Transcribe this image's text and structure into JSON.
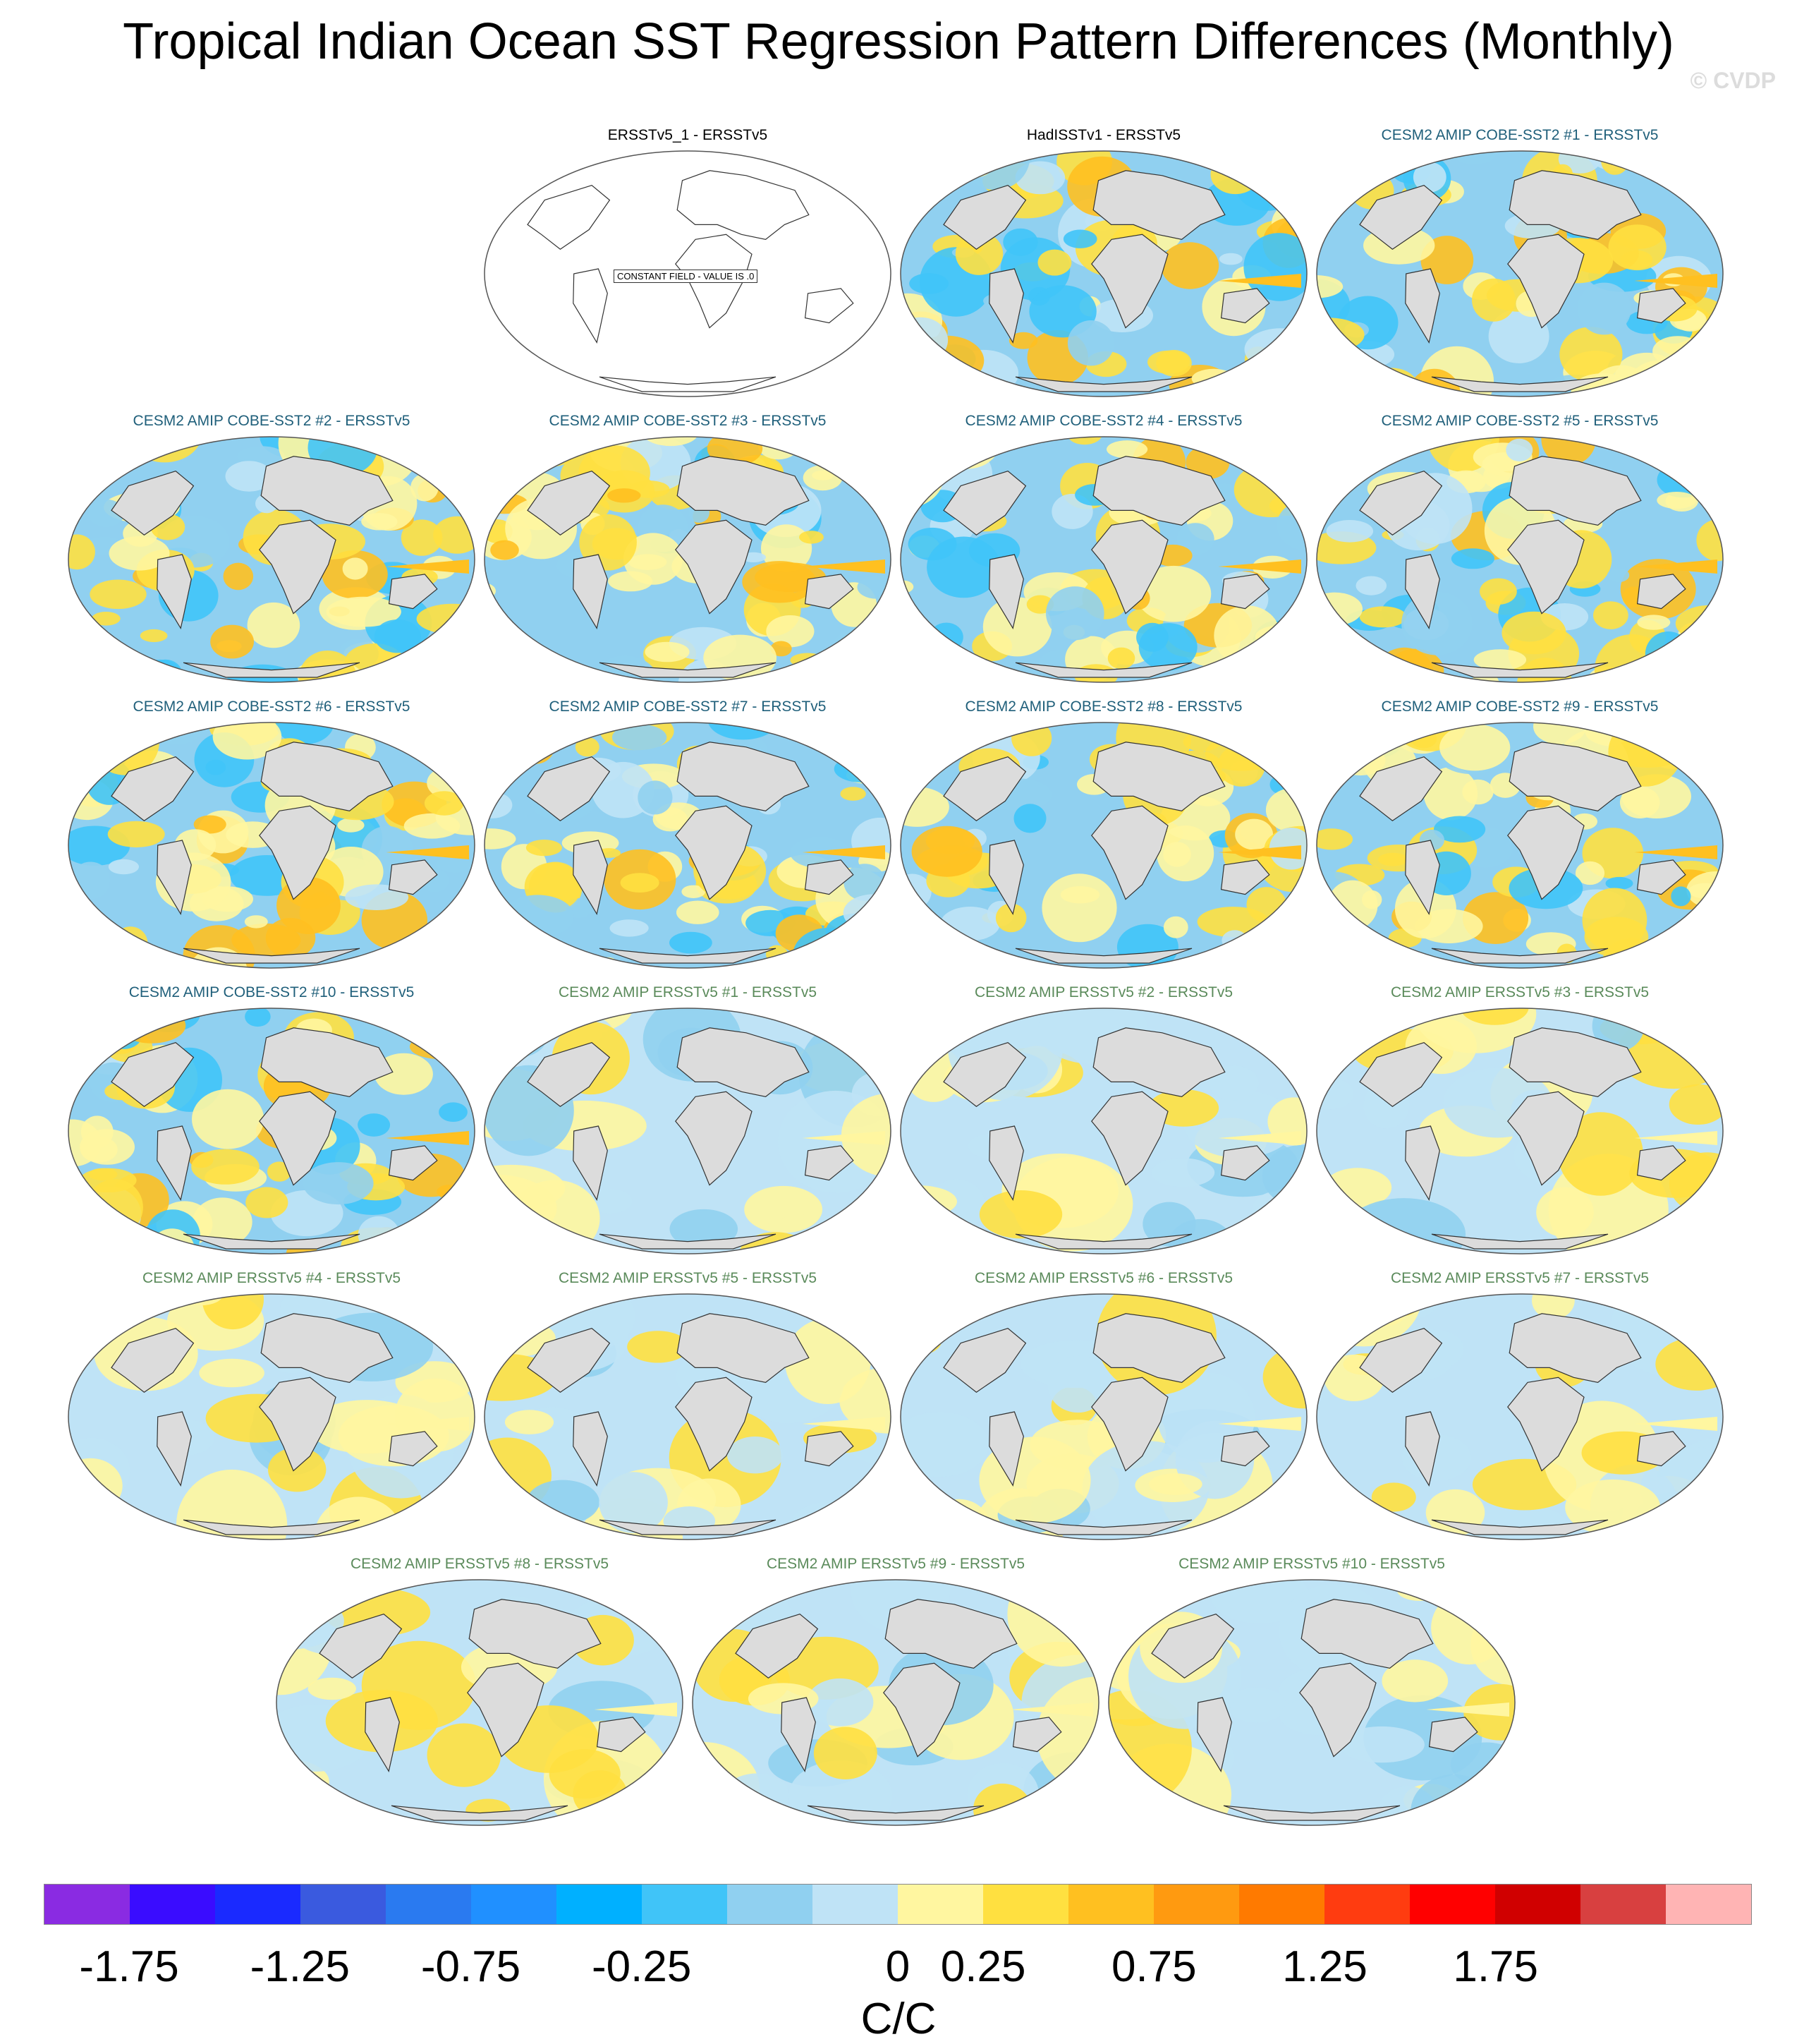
{
  "title": "Tropical Indian Ocean SST Regression Pattern Differences (Monthly)",
  "watermark": "© CVDP",
  "constant_field_label": "CONSTANT FIELD - VALUE IS .0",
  "colors": {
    "obs_title": "#000000",
    "cobe_title": "#1f5f7a",
    "ersst_title": "#5a8a5a",
    "land": "#dcdcdc",
    "ocean_blank": "#ffffff"
  },
  "panels": [
    {
      "title": "ERSSTv5_1 - ERSSTv5",
      "group": "obs",
      "constant": true
    },
    {
      "title": "HadISSTv1 - ERSSTv5",
      "group": "obs"
    },
    {
      "title": "CESM2 AMIP COBE-SST2 #1 - ERSSTv5",
      "group": "cobe"
    },
    {
      "title": "CESM2 AMIP COBE-SST2 #2 - ERSSTv5",
      "group": "cobe"
    },
    {
      "title": "CESM2 AMIP COBE-SST2 #3 - ERSSTv5",
      "group": "cobe"
    },
    {
      "title": "CESM2 AMIP COBE-SST2 #4 - ERSSTv5",
      "group": "cobe"
    },
    {
      "title": "CESM2 AMIP COBE-SST2 #5 - ERSSTv5",
      "group": "cobe"
    },
    {
      "title": "CESM2 AMIP COBE-SST2 #6 - ERSSTv5",
      "group": "cobe"
    },
    {
      "title": "CESM2 AMIP COBE-SST2 #7 - ERSSTv5",
      "group": "cobe"
    },
    {
      "title": "CESM2 AMIP COBE-SST2 #8 - ERSSTv5",
      "group": "cobe"
    },
    {
      "title": "CESM2 AMIP COBE-SST2 #9 - ERSSTv5",
      "group": "cobe"
    },
    {
      "title": "CESM2 AMIP COBE-SST2 #10 - ERSSTv5",
      "group": "cobe"
    },
    {
      "title": "CESM2 AMIP ERSSTv5 #1 - ERSSTv5",
      "group": "ersst"
    },
    {
      "title": "CESM2 AMIP ERSSTv5 #2 - ERSSTv5",
      "group": "ersst"
    },
    {
      "title": "CESM2 AMIP ERSSTv5 #3 - ERSSTv5",
      "group": "ersst"
    },
    {
      "title": "CESM2 AMIP ERSSTv5 #4 - ERSSTv5",
      "group": "ersst"
    },
    {
      "title": "CESM2 AMIP ERSSTv5 #5 - ERSSTv5",
      "group": "ersst"
    },
    {
      "title": "CESM2 AMIP ERSSTv5 #6 - ERSSTv5",
      "group": "ersst"
    },
    {
      "title": "CESM2 AMIP ERSSTv5 #7 - ERSSTv5",
      "group": "ersst"
    },
    {
      "title": "CESM2 AMIP ERSSTv5 #8 - ERSSTv5",
      "group": "ersst"
    },
    {
      "title": "CESM2 AMIP ERSSTv5 #9 - ERSSTv5",
      "group": "ersst"
    },
    {
      "title": "CESM2 AMIP ERSSTv5 #10 - ERSSTv5",
      "group": "ersst"
    }
  ],
  "colorbar": {
    "colors": [
      "#8a2be2",
      "#3a0cff",
      "#1a2aff",
      "#3a5adf",
      "#2a7af0",
      "#2090ff",
      "#00b0ff",
      "#40c4f8",
      "#90d0f0",
      "#bfe3f6",
      "#fff6a0",
      "#ffe040",
      "#ffc020",
      "#ff9a10",
      "#ff7a00",
      "#ff3c10",
      "#ff0000",
      "#d00000",
      "#d84040",
      "#ffb4b4"
    ],
    "tick_labels": [
      "-1.75",
      "-1.25",
      "-0.75",
      "-0.25",
      "0",
      "0.25",
      "0.75",
      "1.25",
      "1.75"
    ],
    "units": "C/C"
  }
}
